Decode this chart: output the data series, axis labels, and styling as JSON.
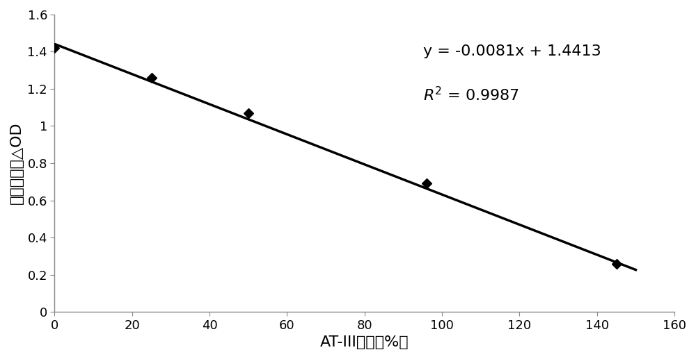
{
  "x_data": [
    0,
    25,
    50,
    96,
    145
  ],
  "y_data": [
    1.42,
    1.26,
    1.07,
    0.69,
    0.26
  ],
  "line_slope": -0.0081,
  "line_intercept": 1.4413,
  "equation_text": "y = -0.0081x + 1.4413",
  "r2_label": "R",
  "r2_value": " = 0.9987",
  "xlabel": "AT-III活性（%）",
  "ylabel": "吸光度差値△OD",
  "xlim": [
    0,
    160
  ],
  "ylim": [
    0,
    1.6
  ],
  "xticks": [
    0,
    20,
    40,
    60,
    80,
    100,
    120,
    140,
    160
  ],
  "yticks": [
    0,
    0.2,
    0.4,
    0.6,
    0.8,
    1.0,
    1.2,
    1.4,
    1.6
  ],
  "line_color": "#000000",
  "marker_color": "#000000",
  "background_color": "#ffffff",
  "font_size_label": 16,
  "font_size_tick": 13,
  "font_size_annotation": 16,
  "line_width": 2.5,
  "marker_size": 7,
  "line_x_end": 150
}
